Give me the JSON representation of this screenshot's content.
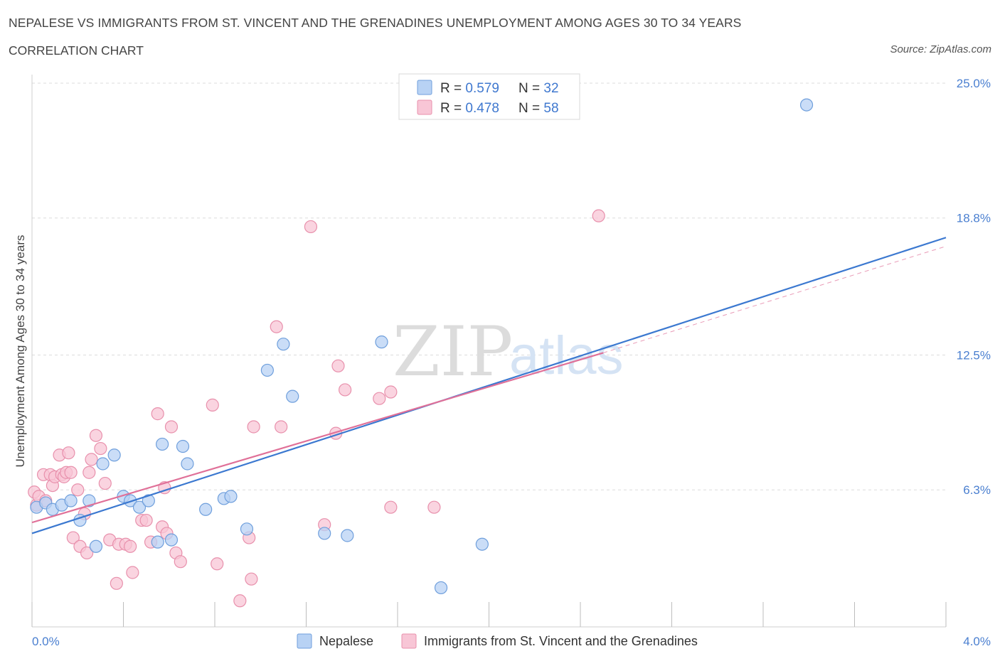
{
  "header": {
    "title": "NEPALESE VS IMMIGRANTS FROM ST. VINCENT AND THE GRENADINES UNEMPLOYMENT AMONG AGES 30 TO 34 YEARS",
    "subtitle": "CORRELATION CHART",
    "source": "Source: ZipAtlas.com"
  },
  "watermark": {
    "zip": "ZIP",
    "atlas": "atlas"
  },
  "legend": {
    "rows": [
      {
        "r_label": "R = ",
        "r_value": "0.579",
        "n_label": "N = ",
        "n_value": "32"
      },
      {
        "r_label": "R = ",
        "r_value": "0.478",
        "n_label": "N = ",
        "n_value": "58"
      }
    ]
  },
  "colors": {
    "nepalese_fill": "#b8d2f4",
    "nepalese_stroke": "#6f9fdc",
    "nepalese_line": "#3b78d0",
    "svg_fill": "#f8c6d6",
    "svg_stroke": "#e890ac",
    "svg_line": "#e07098",
    "grid": "#dcdcdc",
    "axis_text": "#4a7fd0"
  },
  "chart_data": {
    "type": "scatter",
    "title": "NEPALESE VS IMMIGRANTS FROM ST. VINCENT AND THE GRENADINES UNEMPLOYMENT AMONG AGES 30 TO 34 YEARS",
    "xlabel": "",
    "ylabel": "Unemployment Among Ages 30 to 34 years",
    "xlim": [
      0,
      4.0
    ],
    "ylim": [
      0,
      25.0
    ],
    "x_tick_labels": [
      "0.0%",
      "4.0%"
    ],
    "y_ticks": [
      6.3,
      12.5,
      18.8,
      25.0
    ],
    "y_tick_labels": [
      "6.3%",
      "12.5%",
      "18.8%",
      "25.0%"
    ],
    "grid": true,
    "legend_position": "top-center",
    "series": [
      {
        "name": "Nepalese",
        "trend": {
          "x": [
            0,
            4.0
          ],
          "y": [
            4.3,
            17.9
          ]
        },
        "points": [
          [
            0.02,
            5.5
          ],
          [
            0.06,
            5.7
          ],
          [
            0.09,
            5.4
          ],
          [
            0.13,
            5.6
          ],
          [
            0.17,
            5.8
          ],
          [
            0.21,
            4.9
          ],
          [
            0.25,
            5.8
          ],
          [
            0.28,
            3.7
          ],
          [
            0.31,
            7.5
          ],
          [
            0.36,
            7.9
          ],
          [
            0.4,
            6.0
          ],
          [
            0.43,
            5.8
          ],
          [
            0.47,
            5.5
          ],
          [
            0.51,
            5.8
          ],
          [
            0.55,
            3.9
          ],
          [
            0.57,
            8.4
          ],
          [
            0.61,
            4.0
          ],
          [
            0.66,
            8.3
          ],
          [
            0.68,
            7.5
          ],
          [
            0.76,
            5.4
          ],
          [
            0.84,
            5.9
          ],
          [
            0.87,
            6.0
          ],
          [
            0.94,
            4.5
          ],
          [
            1.03,
            11.8
          ],
          [
            1.1,
            13.0
          ],
          [
            1.14,
            10.6
          ],
          [
            1.28,
            4.3
          ],
          [
            1.38,
            4.2
          ],
          [
            1.53,
            13.1
          ],
          [
            1.79,
            1.8
          ],
          [
            1.97,
            3.8
          ],
          [
            3.39,
            24.0
          ]
        ]
      },
      {
        "name": "Immigrants from St. Vincent and the Grenadines",
        "trend": {
          "x": [
            0,
            2.5
          ],
          "y": [
            4.8,
            12.6
          ]
        },
        "trend_extension": {
          "x": [
            2.5,
            4.0
          ],
          "y": [
            12.6,
            17.5
          ]
        },
        "points": [
          [
            0.01,
            6.2
          ],
          [
            0.02,
            5.6
          ],
          [
            0.03,
            6.0
          ],
          [
            0.05,
            7.0
          ],
          [
            0.06,
            5.8
          ],
          [
            0.08,
            7.0
          ],
          [
            0.09,
            6.5
          ],
          [
            0.1,
            6.9
          ],
          [
            0.12,
            7.9
          ],
          [
            0.13,
            7.0
          ],
          [
            0.14,
            6.9
          ],
          [
            0.15,
            7.1
          ],
          [
            0.16,
            8.0
          ],
          [
            0.17,
            7.1
          ],
          [
            0.18,
            4.1
          ],
          [
            0.2,
            6.3
          ],
          [
            0.21,
            3.7
          ],
          [
            0.23,
            5.2
          ],
          [
            0.24,
            3.4
          ],
          [
            0.25,
            7.1
          ],
          [
            0.26,
            7.7
          ],
          [
            0.28,
            8.8
          ],
          [
            0.3,
            8.2
          ],
          [
            0.32,
            6.6
          ],
          [
            0.34,
            4.0
          ],
          [
            0.37,
            2.0
          ],
          [
            0.38,
            3.8
          ],
          [
            0.41,
            3.8
          ],
          [
            0.43,
            3.7
          ],
          [
            0.44,
            2.5
          ],
          [
            0.48,
            4.9
          ],
          [
            0.5,
            4.9
          ],
          [
            0.52,
            3.9
          ],
          [
            0.55,
            9.8
          ],
          [
            0.57,
            4.6
          ],
          [
            0.58,
            6.4
          ],
          [
            0.59,
            4.3
          ],
          [
            0.61,
            9.2
          ],
          [
            0.63,
            3.4
          ],
          [
            0.65,
            3.0
          ],
          [
            0.79,
            10.2
          ],
          [
            0.81,
            2.9
          ],
          [
            0.91,
            1.2
          ],
          [
            0.95,
            4.1
          ],
          [
            0.96,
            2.2
          ],
          [
            0.97,
            9.2
          ],
          [
            1.07,
            13.8
          ],
          [
            1.09,
            9.2
          ],
          [
            1.22,
            18.4
          ],
          [
            1.28,
            4.7
          ],
          [
            1.33,
            8.9
          ],
          [
            1.34,
            12.0
          ],
          [
            1.37,
            10.9
          ],
          [
            1.52,
            10.5
          ],
          [
            1.57,
            10.8
          ],
          [
            1.57,
            5.5
          ],
          [
            1.76,
            5.5
          ],
          [
            2.48,
            18.9
          ]
        ]
      }
    ]
  },
  "bottom_legend": {
    "items": [
      {
        "label": "Nepalese"
      },
      {
        "label": "Immigrants from St. Vincent and the Grenadines"
      }
    ]
  }
}
